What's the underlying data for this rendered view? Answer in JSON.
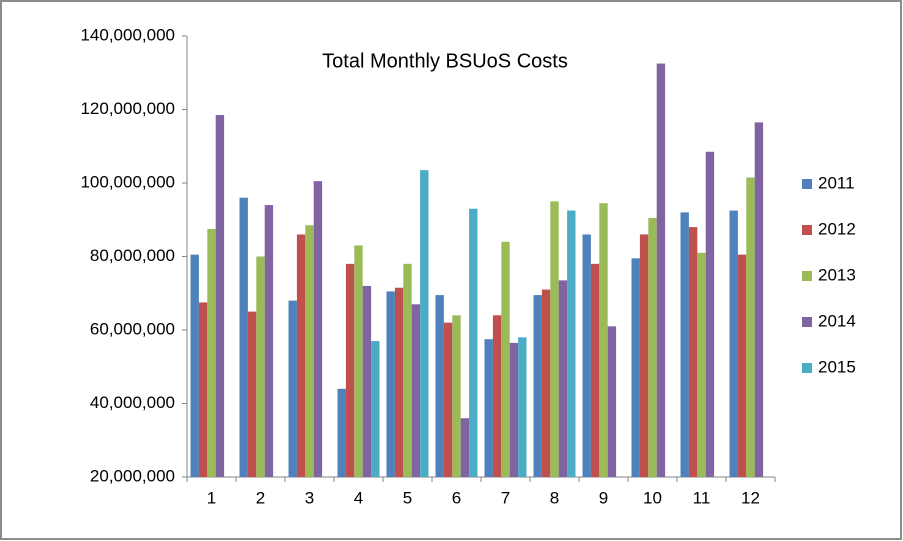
{
  "chart_data": {
    "type": "bar",
    "title": "Total Monthly BSUoS Costs",
    "categories": [
      "1",
      "2",
      "3",
      "4",
      "5",
      "6",
      "7",
      "8",
      "9",
      "10",
      "11",
      "12"
    ],
    "series": [
      {
        "name": "2011",
        "color": "#4f81bd",
        "values": [
          80500000,
          96000000,
          68000000,
          44000000,
          70500000,
          69500000,
          57500000,
          69500000,
          86000000,
          79500000,
          92000000,
          92500000
        ]
      },
      {
        "name": "2012",
        "color": "#c0504d",
        "values": [
          67500000,
          65000000,
          86000000,
          78000000,
          71500000,
          62000000,
          64000000,
          71000000,
          78000000,
          86000000,
          88000000,
          80500000
        ]
      },
      {
        "name": "2013",
        "color": "#9bbb59",
        "values": [
          87500000,
          80000000,
          88500000,
          83000000,
          78000000,
          64000000,
          84000000,
          95000000,
          94500000,
          90500000,
          81000000,
          101500000
        ]
      },
      {
        "name": "2014",
        "color": "#8064a2",
        "values": [
          118500000,
          94000000,
          100500000,
          72000000,
          67000000,
          36000000,
          56500000,
          73500000,
          61000000,
          132500000,
          108500000,
          116500000
        ]
      },
      {
        "name": "2015",
        "color": "#4bacc6",
        "values": [
          null,
          null,
          null,
          57000000,
          103500000,
          93000000,
          58000000,
          92500000,
          null,
          null,
          null,
          null
        ]
      }
    ],
    "ylim": [
      20000000,
      140000000
    ],
    "yticks": [
      {
        "value": 20000000,
        "label": "20,000,000"
      },
      {
        "value": 40000000,
        "label": "40,000,000"
      },
      {
        "value": 60000000,
        "label": "60,000,000"
      },
      {
        "value": 80000000,
        "label": "80,000,000"
      },
      {
        "value": 100000000,
        "label": "100,000,000"
      },
      {
        "value": 120000000,
        "label": "120,000,000"
      },
      {
        "value": 140000000,
        "label": "140,000,000"
      }
    ],
    "legend": "right",
    "grid": false
  }
}
